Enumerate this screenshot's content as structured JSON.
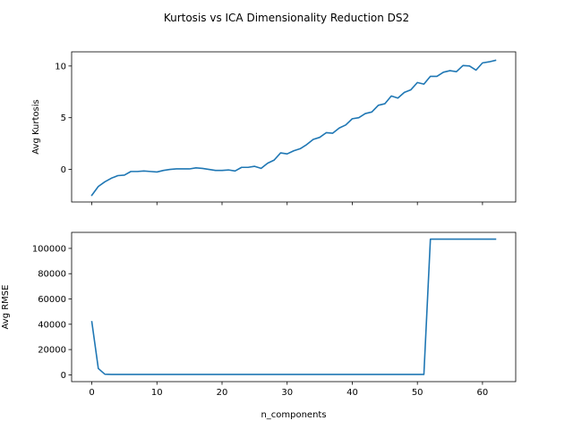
{
  "chart_data": {
    "type": "line",
    "title": "Kurtosis vs ICA Dimensionality Reduction DS2",
    "xlabel": "n_components",
    "xlim": [
      -3.1,
      65.1
    ],
    "x_ticks": [
      "0",
      "10",
      "20",
      "30",
      "40",
      "50",
      "60"
    ],
    "line_color": "#1f77b4",
    "grid": false,
    "subplots": [
      {
        "ylabel": "Avg Kurtosis",
        "ylim": [
          -3.15,
          11.37
        ],
        "y_ticks": [
          "0",
          "5",
          "10"
        ],
        "x_tick_labels_visible": false,
        "x": [
          0,
          1,
          2,
          3,
          4,
          5,
          6,
          7,
          8,
          9,
          10,
          11,
          12,
          13,
          14,
          15,
          16,
          17,
          18,
          19,
          20,
          21,
          22,
          23,
          24,
          25,
          26,
          27,
          28,
          29,
          30,
          31,
          32,
          33,
          34,
          35,
          36,
          37,
          38,
          39,
          40,
          41,
          42,
          43,
          44,
          45,
          46,
          47,
          48,
          49,
          50,
          51,
          52,
          53,
          54,
          55,
          56,
          57,
          58,
          59,
          60,
          61,
          62
        ],
        "values": [
          -2.5,
          -1.65,
          -1.2,
          -0.85,
          -0.6,
          -0.55,
          -0.2,
          -0.2,
          -0.15,
          -0.2,
          -0.25,
          -0.1,
          0.0,
          0.05,
          0.05,
          0.05,
          0.15,
          0.1,
          0.0,
          -0.1,
          -0.1,
          -0.05,
          -0.15,
          0.2,
          0.2,
          0.3,
          0.1,
          0.6,
          0.9,
          1.6,
          1.5,
          1.8,
          2.0,
          2.4,
          2.9,
          3.1,
          3.55,
          3.5,
          4.0,
          4.3,
          4.9,
          5.0,
          5.4,
          5.55,
          6.2,
          6.35,
          7.1,
          6.9,
          7.45,
          7.7,
          8.4,
          8.25,
          9.0,
          9.0,
          9.4,
          9.55,
          9.45,
          10.05,
          10.0,
          9.6,
          10.3,
          10.4,
          10.55
        ]
      },
      {
        "ylabel": "Avg RMSE",
        "ylim": [
          -5365,
          112665
        ],
        "y_ticks": [
          "0",
          "20000",
          "40000",
          "60000",
          "80000",
          "100000"
        ],
        "x_tick_labels_visible": true,
        "x": [
          0,
          1,
          2,
          3,
          4,
          5,
          6,
          7,
          8,
          9,
          10,
          11,
          12,
          13,
          14,
          15,
          16,
          17,
          18,
          19,
          20,
          21,
          22,
          23,
          24,
          25,
          26,
          27,
          28,
          29,
          30,
          31,
          32,
          33,
          34,
          35,
          36,
          37,
          38,
          39,
          40,
          41,
          42,
          43,
          44,
          45,
          46,
          47,
          48,
          49,
          50,
          51,
          52,
          53,
          54,
          55,
          56,
          57,
          58,
          59,
          60,
          61,
          62
        ],
        "values": [
          42000,
          5000,
          500,
          300,
          300,
          300,
          300,
          300,
          300,
          300,
          300,
          300,
          300,
          300,
          300,
          300,
          300,
          300,
          300,
          300,
          300,
          300,
          300,
          300,
          300,
          300,
          300,
          300,
          300,
          300,
          300,
          300,
          300,
          300,
          300,
          300,
          300,
          300,
          300,
          300,
          300,
          300,
          300,
          300,
          300,
          300,
          300,
          300,
          300,
          300,
          300,
          300,
          107300,
          107300,
          107300,
          107300,
          107300,
          107300,
          107300,
          107300,
          107300,
          107300,
          107300
        ]
      }
    ]
  }
}
